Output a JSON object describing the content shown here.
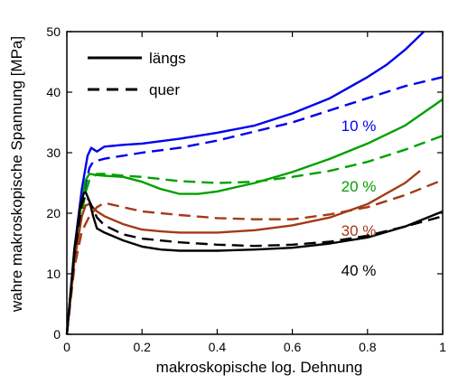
{
  "chart_data": {
    "type": "line",
    "xlabel": "makroskopische log. Dehnung",
    "ylabel": "wahre makroskopische Spannung [MPa]",
    "xlim": [
      0,
      1
    ],
    "ylim": [
      0,
      50
    ],
    "xticks": [
      0,
      0.2,
      0.4,
      0.6,
      0.8,
      1
    ],
    "xtick_labels": [
      "0",
      "0.2",
      "0.4",
      "0.6",
      "0.8",
      "1"
    ],
    "yticks": [
      0,
      10,
      20,
      30,
      40,
      50
    ],
    "ytick_labels": [
      "0",
      "10",
      "20",
      "30",
      "40",
      "50"
    ],
    "grid": false,
    "legend": {
      "position": "top-left",
      "entries": [
        {
          "label": "längs",
          "style": "solid"
        },
        {
          "label": "quer",
          "style": "dashed"
        }
      ]
    },
    "annotations": [
      {
        "text": "10 %",
        "x": 0.73,
        "y": 34.5,
        "color": "#0000ee"
      },
      {
        "text": "20 %",
        "x": 0.73,
        "y": 24.5,
        "color": "#00a000"
      },
      {
        "text": "30 %",
        "x": 0.73,
        "y": 17.2,
        "color": "#a33a16"
      },
      {
        "text": "40 %",
        "x": 0.73,
        "y": 10.6,
        "color": "#000000"
      }
    ],
    "series": [
      {
        "group": "10 %",
        "style": "solid",
        "color": "#0000ee",
        "x": [
          0,
          0.02,
          0.04,
          0.055,
          0.065,
          0.08,
          0.1,
          0.15,
          0.2,
          0.3,
          0.4,
          0.5,
          0.6,
          0.7,
          0.8,
          0.85,
          0.9,
          0.95
        ],
        "y": [
          0,
          14,
          24,
          29.5,
          30.8,
          30.2,
          31,
          31.3,
          31.5,
          32.3,
          33.3,
          34.5,
          36.5,
          39,
          42.5,
          44.5,
          47,
          50
        ]
      },
      {
        "group": "10 %",
        "style": "dashed",
        "color": "#0000ee",
        "x": [
          0,
          0.02,
          0.04,
          0.06,
          0.07,
          0.1,
          0.2,
          0.3,
          0.4,
          0.5,
          0.6,
          0.7,
          0.8,
          0.9,
          1.0
        ],
        "y": [
          0,
          13,
          22,
          27.5,
          28.5,
          29,
          30,
          30.8,
          32,
          33.5,
          35,
          37,
          39,
          41,
          42.5
        ]
      },
      {
        "group": "20 %",
        "style": "solid",
        "color": "#00a000",
        "x": [
          0,
          0.02,
          0.04,
          0.05,
          0.06,
          0.08,
          0.1,
          0.15,
          0.2,
          0.25,
          0.3,
          0.35,
          0.4,
          0.5,
          0.6,
          0.7,
          0.8,
          0.9,
          1.0
        ],
        "y": [
          0,
          13,
          22,
          25.5,
          26.5,
          26.3,
          26.2,
          26,
          25.2,
          24,
          23.2,
          23.2,
          23.6,
          25,
          26.8,
          29,
          31.5,
          34.5,
          38.8
        ]
      },
      {
        "group": "20 %",
        "style": "dashed",
        "color": "#00a000",
        "x": [
          0,
          0.02,
          0.04,
          0.05,
          0.06,
          0.08,
          0.1,
          0.15,
          0.2,
          0.3,
          0.4,
          0.5,
          0.6,
          0.7,
          0.8,
          0.9,
          1.0
        ],
        "y": [
          0,
          12,
          20,
          23.5,
          25.5,
          26.5,
          26.5,
          26.2,
          26,
          25.3,
          25,
          25.2,
          26,
          27,
          28.5,
          30.5,
          32.8
        ]
      },
      {
        "group": "30 %",
        "style": "solid",
        "color": "#a33a16",
        "x": [
          0,
          0.02,
          0.04,
          0.05,
          0.06,
          0.08,
          0.1,
          0.15,
          0.2,
          0.25,
          0.3,
          0.4,
          0.5,
          0.6,
          0.7,
          0.8,
          0.9,
          0.94
        ],
        "y": [
          0,
          12,
          19.5,
          21.3,
          21.5,
          20.3,
          19.5,
          18.2,
          17.3,
          17,
          16.8,
          16.8,
          17.2,
          18,
          19.3,
          21.5,
          25,
          27
        ]
      },
      {
        "group": "30 %",
        "style": "dashed",
        "color": "#a33a16",
        "x": [
          0,
          0.02,
          0.04,
          0.06,
          0.08,
          0.1,
          0.15,
          0.2,
          0.3,
          0.4,
          0.5,
          0.6,
          0.7,
          0.8,
          0.9,
          1.0
        ],
        "y": [
          0,
          11,
          17,
          19.5,
          21,
          21.7,
          21,
          20.3,
          19.7,
          19.2,
          19,
          19,
          19.8,
          21,
          23,
          25.5
        ]
      },
      {
        "group": "40 %",
        "style": "solid",
        "color": "#000000",
        "x": [
          0,
          0.02,
          0.035,
          0.045,
          0.05,
          0.06,
          0.07,
          0.08,
          0.1,
          0.15,
          0.2,
          0.25,
          0.3,
          0.4,
          0.5,
          0.6,
          0.7,
          0.8,
          0.9,
          1.0
        ],
        "y": [
          0,
          14,
          21,
          23.3,
          23.5,
          22,
          19.5,
          17.5,
          16.8,
          15.5,
          14.5,
          14,
          13.8,
          13.8,
          14,
          14.3,
          15,
          16,
          17.8,
          20.3
        ]
      },
      {
        "group": "40 %",
        "style": "dashed",
        "color": "#000000",
        "x": [
          0,
          0.02,
          0.04,
          0.05,
          0.06,
          0.08,
          0.1,
          0.15,
          0.2,
          0.3,
          0.4,
          0.5,
          0.6,
          0.7,
          0.8,
          0.9,
          1.0
        ],
        "y": [
          0,
          13,
          21.5,
          23,
          22,
          19.3,
          18,
          16.5,
          15.8,
          15.2,
          14.8,
          14.6,
          14.8,
          15.3,
          16.3,
          17.8,
          19.5
        ]
      }
    ]
  }
}
